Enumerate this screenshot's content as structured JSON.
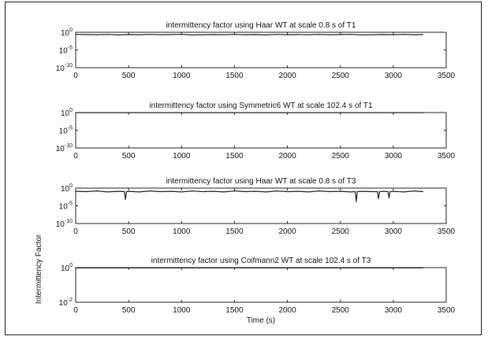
{
  "chart_data": [
    {
      "type": "line",
      "title": "intermittency factor using Haar WT at scale 0.8 s of T1",
      "xlabel": "",
      "ylabel": "",
      "xlim": [
        0,
        3500
      ],
      "yscale": "log",
      "ylim_exp": [
        -10,
        0
      ],
      "ytick_exps": [
        0,
        -5,
        -10
      ],
      "yticks": [
        "10^0",
        "10^-5",
        "10^-10"
      ],
      "xticks": [
        0,
        500,
        1000,
        1500,
        2000,
        2500,
        3000,
        3500
      ],
      "series": [
        {
          "color": "#222222",
          "x": [
            0,
            100,
            200,
            300,
            400,
            500,
            600,
            700,
            800,
            900,
            1000,
            1100,
            1200,
            1300,
            1400,
            1500,
            1600,
            1700,
            1800,
            1900,
            2000,
            2100,
            2200,
            2300,
            2400,
            2500,
            2600,
            2700,
            2800,
            2900,
            3000,
            3100,
            3200,
            3280
          ],
          "y_exp": [
            -0.6,
            -0.65,
            -0.7,
            -0.6,
            -0.75,
            -0.65,
            -0.7,
            -0.6,
            -0.7,
            -0.65,
            -0.6,
            -0.75,
            -0.7,
            -0.65,
            -0.7,
            -0.6,
            -0.7,
            -0.65,
            -0.75,
            -0.6,
            -0.7,
            -0.65,
            -0.7,
            -0.6,
            -0.7,
            -0.65,
            -0.6,
            -0.75,
            -0.7,
            -0.65,
            -0.7,
            -0.6,
            -0.7,
            -0.65
          ]
        }
      ]
    },
    {
      "type": "line",
      "title": "intermittency factor using Symmetric6 WT at scale 102.4 s of T1",
      "xlabel": "",
      "ylabel": "",
      "xlim": [
        0,
        3500
      ],
      "yscale": "log",
      "ylim_exp": [
        -10,
        0
      ],
      "ytick_exps": [
        0,
        -5,
        -10
      ],
      "yticks": [
        "10^0",
        "10^-5",
        "10^-10"
      ],
      "xticks": [
        0,
        500,
        1000,
        1500,
        2000,
        2500,
        3000,
        3500
      ],
      "series": [
        {
          "color": "#222222",
          "x": [
            0,
            500,
            1000,
            1500,
            2000,
            2500,
            3000,
            3280
          ],
          "y_exp": [
            -0.05,
            -0.05,
            -0.05,
            -0.05,
            -0.05,
            -0.05,
            -0.05,
            -0.05
          ]
        }
      ]
    },
    {
      "type": "line",
      "title": "intermittency factor using Haar WT at scale 0.8 s of T3",
      "xlabel": "",
      "ylabel": "",
      "xlim": [
        0,
        3500
      ],
      "yscale": "log",
      "ylim_exp": [
        -10,
        0
      ],
      "ytick_exps": [
        0,
        -5,
        -10
      ],
      "yticks": [
        "10^0",
        "10^-5",
        "10^-10"
      ],
      "xticks": [
        0,
        500,
        1000,
        1500,
        2000,
        2500,
        3000,
        3500
      ],
      "series": [
        {
          "color": "#222222",
          "x": [
            0,
            100,
            200,
            300,
            400,
            460,
            470,
            480,
            500,
            600,
            700,
            800,
            900,
            1000,
            1100,
            1200,
            1300,
            1400,
            1500,
            1600,
            1700,
            1800,
            1900,
            2000,
            2100,
            2200,
            2300,
            2400,
            2500,
            2600,
            2640,
            2650,
            2660,
            2700,
            2800,
            2850,
            2860,
            2870,
            2900,
            2950,
            2960,
            2970,
            3000,
            3100,
            3200,
            3280
          ],
          "y_exp": [
            -0.9,
            -1.0,
            -0.8,
            -1.1,
            -0.9,
            -1.0,
            -3.2,
            -1.0,
            -0.9,
            -1.1,
            -0.8,
            -1.0,
            -0.9,
            -1.1,
            -0.8,
            -1.0,
            -0.9,
            -1.1,
            -0.8,
            -1.0,
            -0.9,
            -1.1,
            -0.8,
            -1.0,
            -0.9,
            -1.1,
            -0.8,
            -1.0,
            -0.9,
            -1.1,
            -1.0,
            -3.8,
            -1.0,
            -0.9,
            -1.0,
            -1.0,
            -3.0,
            -1.0,
            -0.9,
            -1.0,
            -2.8,
            -1.0,
            -0.9,
            -1.1,
            -0.8,
            -1.0
          ]
        }
      ]
    },
    {
      "type": "line",
      "title": "intermittency factor using Coifmann2 WT at scale 102.4 s of T3",
      "xlabel": "Time (s)",
      "ylabel": "Intermittency Factor",
      "xlim": [
        0,
        3500
      ],
      "yscale": "log",
      "ylim_exp": [
        -2,
        0
      ],
      "ytick_exps": [
        0,
        -2
      ],
      "yticks": [
        "10^0",
        "10^-2"
      ],
      "xticks": [
        0,
        500,
        1000,
        1500,
        2000,
        2500,
        3000,
        3500
      ],
      "series": [
        {
          "color": "#222222",
          "x": [
            0,
            500,
            1000,
            1500,
            2000,
            2500,
            3000,
            3280
          ],
          "y_exp": [
            -0.02,
            -0.02,
            -0.02,
            -0.02,
            -0.02,
            -0.02,
            -0.02,
            -0.02
          ]
        }
      ]
    }
  ]
}
